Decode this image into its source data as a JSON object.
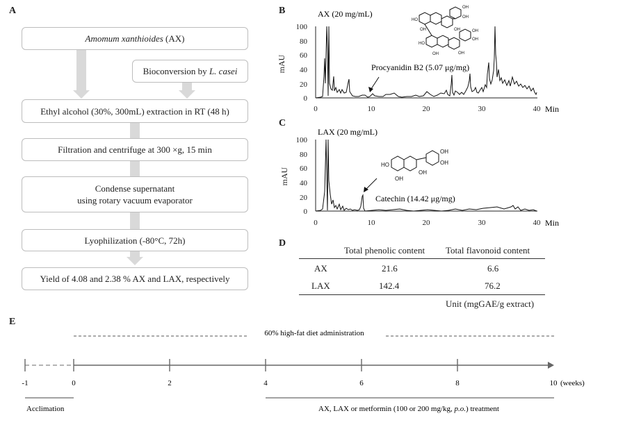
{
  "panels": {
    "a": "A",
    "b": "B",
    "c": "C",
    "d": "D",
    "e": "E"
  },
  "flow": {
    "box1_species": "Amomum xanthioides",
    "box1_suffix": " (AX)",
    "box2_prefix": "Bioconversion by ",
    "box2_species": "L. casei",
    "box3": "Ethyl alcohol (30%, 300mL) extraction in RT (48 h)",
    "box4": "Filtration and centrifuge at 300 ×g, 15 min",
    "box5_line1": "Condense supernatant",
    "box5_line2": "using rotary vacuum evaporator",
    "box6": "Lyophilization (-80°C, 72h)",
    "box7": "Yield of 4.08 and 2.38 % AX and LAX, respectively"
  },
  "chromatogram_b": {
    "label": "AX (20 mg/mL)",
    "ylabel": "mAU",
    "xunit": "Min",
    "yticks": [
      "100",
      "80",
      "60",
      "40",
      "20",
      "0"
    ],
    "xticks": [
      "0",
      "10",
      "20",
      "30",
      "40"
    ],
    "annotation": "Procyanidin B2 (5.07 μg/mg)",
    "molecule_labels": [
      "HO",
      "OH",
      "OH",
      "OH",
      "OH",
      "HO",
      "OH",
      "OH",
      "OH",
      "OH"
    ]
  },
  "chromatogram_c": {
    "label": "LAX (20 mg/mL)",
    "ylabel": "mAU",
    "xunit": "Min",
    "yticks": [
      "100",
      "80",
      "60",
      "40",
      "20",
      "0"
    ],
    "xticks": [
      "0",
      "10",
      "20",
      "30",
      "40"
    ],
    "annotation": "Catechin (14.42 μg/mg)",
    "molecule_labels": [
      "HO",
      "OH",
      "OH",
      "OH",
      "OH"
    ]
  },
  "table_d": {
    "col1": "Total phenolic content",
    "col2": "Total flavonoid content",
    "rows": [
      {
        "name": "AX",
        "phenolic": "21.6",
        "flavonoid": "6.6"
      },
      {
        "name": "LAX",
        "phenolic": "142.4",
        "flavonoid": "76.2"
      }
    ],
    "unit": "Unit (mgGAE/g extract)"
  },
  "timeline_e": {
    "diet": "60% high-fat diet administration",
    "ticks": [
      "-1",
      "0",
      "2",
      "4",
      "6",
      "8",
      "10"
    ],
    "unit": "(weeks)",
    "acclimation": "Acclimation",
    "treatment_prefix": "AX, LAX or metformin (100 or 200 mg/kg, ",
    "treatment_route": "p.o.",
    "treatment_suffix": ") treatment"
  },
  "colors": {
    "box_border": "#bdbdbd",
    "arrow": "#d9d9d9",
    "trace": "#111111"
  }
}
